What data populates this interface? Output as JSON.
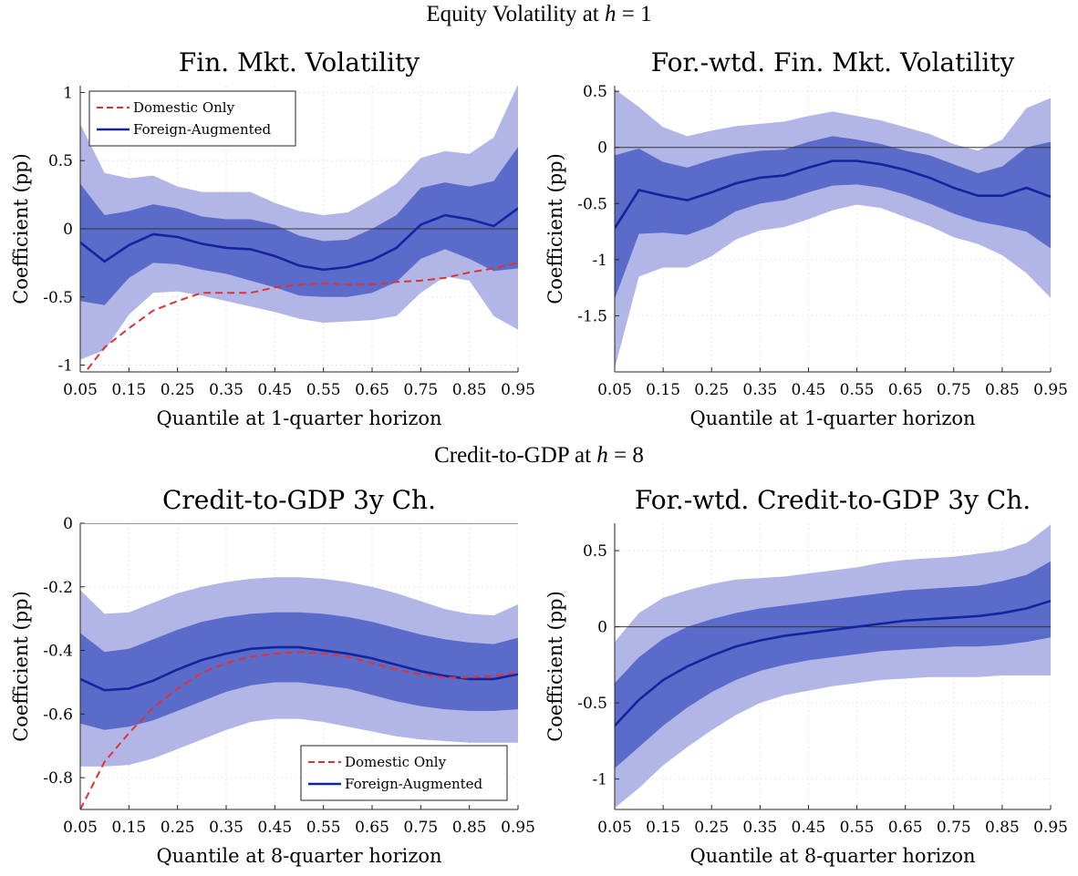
{
  "sections": [
    {
      "title_prefix": "Equity Volatility at ",
      "title_math": "h",
      "title_suffix": " = 1"
    },
    {
      "title_prefix": "Credit-to-GDP at ",
      "title_math": "h",
      "title_suffix": " = 8"
    }
  ],
  "colors": {
    "outer_band": "#b1b6e6",
    "inner_band": "#5b6bc9",
    "foreign_line": "#1225a0",
    "domestic_line": "#e03232",
    "zero_line": "#333333"
  },
  "chart_data": [
    {
      "type": "line",
      "title": "Fin. Mkt. Volatility",
      "xlabel": "Quantile at 1-quarter horizon",
      "ylabel": "Coefficient (pp)",
      "x": [
        0.05,
        0.1,
        0.15,
        0.2,
        0.25,
        0.3,
        0.35,
        0.4,
        0.45,
        0.5,
        0.55,
        0.6,
        0.65,
        0.7,
        0.75,
        0.8,
        0.85,
        0.9,
        0.95
      ],
      "xticks": [
        "0.05",
        "0.15",
        "0.25",
        "0.35",
        "0.45",
        "0.55",
        "0.65",
        "0.75",
        "0.85",
        "0.95"
      ],
      "yticks": [
        "1",
        "0.5",
        "0",
        "-0.5",
        "-1"
      ],
      "ylim": [
        -1.05,
        1.05
      ],
      "legend": {
        "position": "top-left",
        "entries": [
          "Domestic Only",
          "Foreign-Augmented"
        ]
      },
      "series": [
        {
          "name": "Foreign-Augmented",
          "style": "solid",
          "values": [
            -0.1,
            -0.24,
            -0.12,
            -0.04,
            -0.06,
            -0.11,
            -0.14,
            -0.15,
            -0.2,
            -0.27,
            -0.3,
            -0.28,
            -0.23,
            -0.14,
            0.03,
            0.1,
            0.07,
            0.02,
            0.15
          ]
        },
        {
          "name": "Domestic Only",
          "style": "dashed",
          "values": [
            -1.1,
            -0.87,
            -0.73,
            -0.6,
            -0.53,
            -0.47,
            -0.47,
            -0.47,
            -0.43,
            -0.41,
            -0.4,
            -0.41,
            -0.41,
            -0.39,
            -0.38,
            -0.36,
            -0.32,
            -0.29,
            -0.25
          ]
        }
      ],
      "bands": {
        "inner_upper": [
          0.33,
          0.1,
          0.13,
          0.18,
          0.15,
          0.09,
          0.07,
          0.07,
          0.03,
          -0.05,
          -0.09,
          -0.08,
          0.0,
          0.1,
          0.3,
          0.34,
          0.31,
          0.35,
          0.6
        ],
        "inner_lower": [
          -0.53,
          -0.56,
          -0.36,
          -0.25,
          -0.26,
          -0.3,
          -0.33,
          -0.38,
          -0.43,
          -0.49,
          -0.5,
          -0.5,
          -0.47,
          -0.39,
          -0.22,
          -0.15,
          -0.22,
          -0.31,
          -0.29
        ],
        "outer_upper": [
          0.77,
          0.41,
          0.37,
          0.39,
          0.31,
          0.27,
          0.27,
          0.27,
          0.19,
          0.13,
          0.1,
          0.12,
          0.22,
          0.33,
          0.52,
          0.57,
          0.55,
          0.67,
          1.06
        ],
        "outer_lower": [
          -0.96,
          -0.89,
          -0.63,
          -0.47,
          -0.46,
          -0.49,
          -0.53,
          -0.57,
          -0.61,
          -0.66,
          -0.69,
          -0.68,
          -0.67,
          -0.64,
          -0.47,
          -0.35,
          -0.38,
          -0.64,
          -0.74
        ]
      }
    },
    {
      "type": "line",
      "title": "For.-wtd. Fin. Mkt. Volatility",
      "xlabel": "Quantile at 1-quarter horizon",
      "ylabel": "Coefficient (pp)",
      "x": [
        0.05,
        0.1,
        0.15,
        0.2,
        0.25,
        0.3,
        0.35,
        0.4,
        0.45,
        0.5,
        0.55,
        0.6,
        0.65,
        0.7,
        0.75,
        0.8,
        0.85,
        0.9,
        0.95
      ],
      "xticks": [
        "0.05",
        "0.15",
        "0.25",
        "0.35",
        "0.45",
        "0.55",
        "0.65",
        "0.75",
        "0.85",
        "0.95"
      ],
      "yticks": [
        "0.5",
        "0",
        "-0.5",
        "-1",
        "-1.5"
      ],
      "ylim": [
        -2.0,
        0.55
      ],
      "series": [
        {
          "name": "",
          "style": "solid",
          "values": [
            -0.72,
            -0.38,
            -0.43,
            -0.47,
            -0.4,
            -0.32,
            -0.27,
            -0.25,
            -0.18,
            -0.12,
            -0.12,
            -0.15,
            -0.2,
            -0.27,
            -0.36,
            -0.43,
            -0.43,
            -0.36,
            -0.44
          ]
        }
      ],
      "bands": {
        "inner_upper": [
          -0.07,
          -0.01,
          -0.13,
          -0.18,
          -0.11,
          -0.06,
          -0.03,
          -0.02,
          0.05,
          0.1,
          0.07,
          0.03,
          -0.03,
          -0.07,
          -0.15,
          -0.23,
          -0.17,
          0.0,
          0.05
        ],
        "inner_lower": [
          -1.35,
          -0.77,
          -0.76,
          -0.78,
          -0.7,
          -0.57,
          -0.5,
          -0.47,
          -0.4,
          -0.34,
          -0.33,
          -0.36,
          -0.42,
          -0.5,
          -0.59,
          -0.66,
          -0.7,
          -0.75,
          -0.9
        ],
        "outer_upper": [
          0.52,
          0.36,
          0.18,
          0.1,
          0.15,
          0.19,
          0.21,
          0.23,
          0.28,
          0.32,
          0.28,
          0.24,
          0.18,
          0.12,
          0.03,
          -0.03,
          0.07,
          0.35,
          0.44
        ],
        "outer_lower": [
          -1.97,
          -1.15,
          -1.07,
          -1.07,
          -0.97,
          -0.82,
          -0.74,
          -0.71,
          -0.64,
          -0.56,
          -0.51,
          -0.54,
          -0.62,
          -0.7,
          -0.8,
          -0.86,
          -0.96,
          -1.12,
          -1.34
        ]
      }
    },
    {
      "type": "line",
      "title": "Credit-to-GDP 3y Ch.",
      "xlabel": "Quantile at 8-quarter horizon",
      "ylabel": "Coefficient (pp)",
      "x": [
        0.05,
        0.1,
        0.15,
        0.2,
        0.25,
        0.3,
        0.35,
        0.4,
        0.45,
        0.5,
        0.55,
        0.6,
        0.65,
        0.7,
        0.75,
        0.8,
        0.85,
        0.9,
        0.95
      ],
      "xticks": [
        "0.05",
        "0.15",
        "0.25",
        "0.35",
        "0.45",
        "0.55",
        "0.65",
        "0.75",
        "0.85",
        "0.95"
      ],
      "yticks": [
        "0",
        "-0.2",
        "-0.4",
        "-0.6",
        "-0.8"
      ],
      "ylim": [
        -0.9,
        0.0
      ],
      "legend": {
        "position": "bottom-right",
        "entries": [
          "Domestic Only",
          "Foreign-Augmented"
        ]
      },
      "series": [
        {
          "name": "Foreign-Augmented",
          "style": "solid",
          "values": [
            -0.49,
            -0.525,
            -0.52,
            -0.495,
            -0.46,
            -0.43,
            -0.41,
            -0.395,
            -0.39,
            -0.39,
            -0.4,
            -0.41,
            -0.425,
            -0.445,
            -0.465,
            -0.48,
            -0.49,
            -0.49,
            -0.475
          ]
        },
        {
          "name": "Domestic Only",
          "style": "dashed",
          "values": [
            -0.9,
            -0.75,
            -0.66,
            -0.58,
            -0.52,
            -0.47,
            -0.44,
            -0.42,
            -0.41,
            -0.405,
            -0.41,
            -0.42,
            -0.44,
            -0.46,
            -0.475,
            -0.485,
            -0.485,
            -0.48,
            -0.47
          ]
        }
      ],
      "bands": {
        "inner_upper": [
          -0.345,
          -0.405,
          -0.395,
          -0.365,
          -0.335,
          -0.31,
          -0.295,
          -0.285,
          -0.28,
          -0.28,
          -0.285,
          -0.295,
          -0.31,
          -0.33,
          -0.35,
          -0.365,
          -0.375,
          -0.38,
          -0.36
        ],
        "inner_lower": [
          -0.63,
          -0.65,
          -0.64,
          -0.62,
          -0.59,
          -0.56,
          -0.53,
          -0.51,
          -0.5,
          -0.5,
          -0.51,
          -0.52,
          -0.54,
          -0.56,
          -0.575,
          -0.585,
          -0.59,
          -0.59,
          -0.585
        ],
        "outer_upper": [
          -0.21,
          -0.285,
          -0.28,
          -0.25,
          -0.22,
          -0.2,
          -0.185,
          -0.175,
          -0.17,
          -0.17,
          -0.175,
          -0.185,
          -0.2,
          -0.22,
          -0.245,
          -0.27,
          -0.285,
          -0.29,
          -0.255
        ],
        "outer_lower": [
          -0.765,
          -0.765,
          -0.76,
          -0.74,
          -0.71,
          -0.68,
          -0.65,
          -0.625,
          -0.615,
          -0.615,
          -0.625,
          -0.64,
          -0.655,
          -0.67,
          -0.68,
          -0.685,
          -0.69,
          -0.69,
          -0.69
        ]
      }
    },
    {
      "type": "line",
      "title": "For.-wtd. Credit-to-GDP 3y Ch.",
      "xlabel": "Quantile at 8-quarter horizon",
      "ylabel": "Coefficient (pp)",
      "x": [
        0.05,
        0.1,
        0.15,
        0.2,
        0.25,
        0.3,
        0.35,
        0.4,
        0.45,
        0.5,
        0.55,
        0.6,
        0.65,
        0.7,
        0.75,
        0.8,
        0.85,
        0.9,
        0.95
      ],
      "xticks": [
        "0.05",
        "0.15",
        "0.25",
        "0.35",
        "0.45",
        "0.55",
        "0.65",
        "0.75",
        "0.85",
        "0.95"
      ],
      "yticks": [
        "0.5",
        "0",
        "-0.5",
        "-1"
      ],
      "ylim": [
        -1.2,
        0.68
      ],
      "series": [
        {
          "name": "",
          "style": "solid",
          "values": [
            -0.65,
            -0.48,
            -0.35,
            -0.26,
            -0.19,
            -0.13,
            -0.09,
            -0.06,
            -0.04,
            -0.02,
            0.0,
            0.02,
            0.04,
            0.05,
            0.06,
            0.07,
            0.09,
            0.12,
            0.17
          ]
        }
      ],
      "bands": {
        "inner_upper": [
          -0.37,
          -0.2,
          -0.08,
          0.0,
          0.05,
          0.09,
          0.12,
          0.14,
          0.16,
          0.18,
          0.2,
          0.22,
          0.24,
          0.25,
          0.26,
          0.27,
          0.3,
          0.34,
          0.43
        ],
        "inner_lower": [
          -0.93,
          -0.79,
          -0.65,
          -0.53,
          -0.43,
          -0.35,
          -0.29,
          -0.25,
          -0.22,
          -0.2,
          -0.18,
          -0.16,
          -0.15,
          -0.14,
          -0.13,
          -0.13,
          -0.12,
          -0.1,
          -0.07
        ],
        "outer_upper": [
          -0.1,
          0.09,
          0.19,
          0.24,
          0.28,
          0.31,
          0.32,
          0.33,
          0.35,
          0.37,
          0.39,
          0.42,
          0.44,
          0.45,
          0.46,
          0.48,
          0.5,
          0.55,
          0.67
        ],
        "outer_lower": [
          -1.19,
          -1.06,
          -0.91,
          -0.79,
          -0.68,
          -0.58,
          -0.5,
          -0.45,
          -0.42,
          -0.39,
          -0.37,
          -0.35,
          -0.34,
          -0.33,
          -0.33,
          -0.33,
          -0.32,
          -0.32,
          -0.32
        ]
      }
    }
  ]
}
